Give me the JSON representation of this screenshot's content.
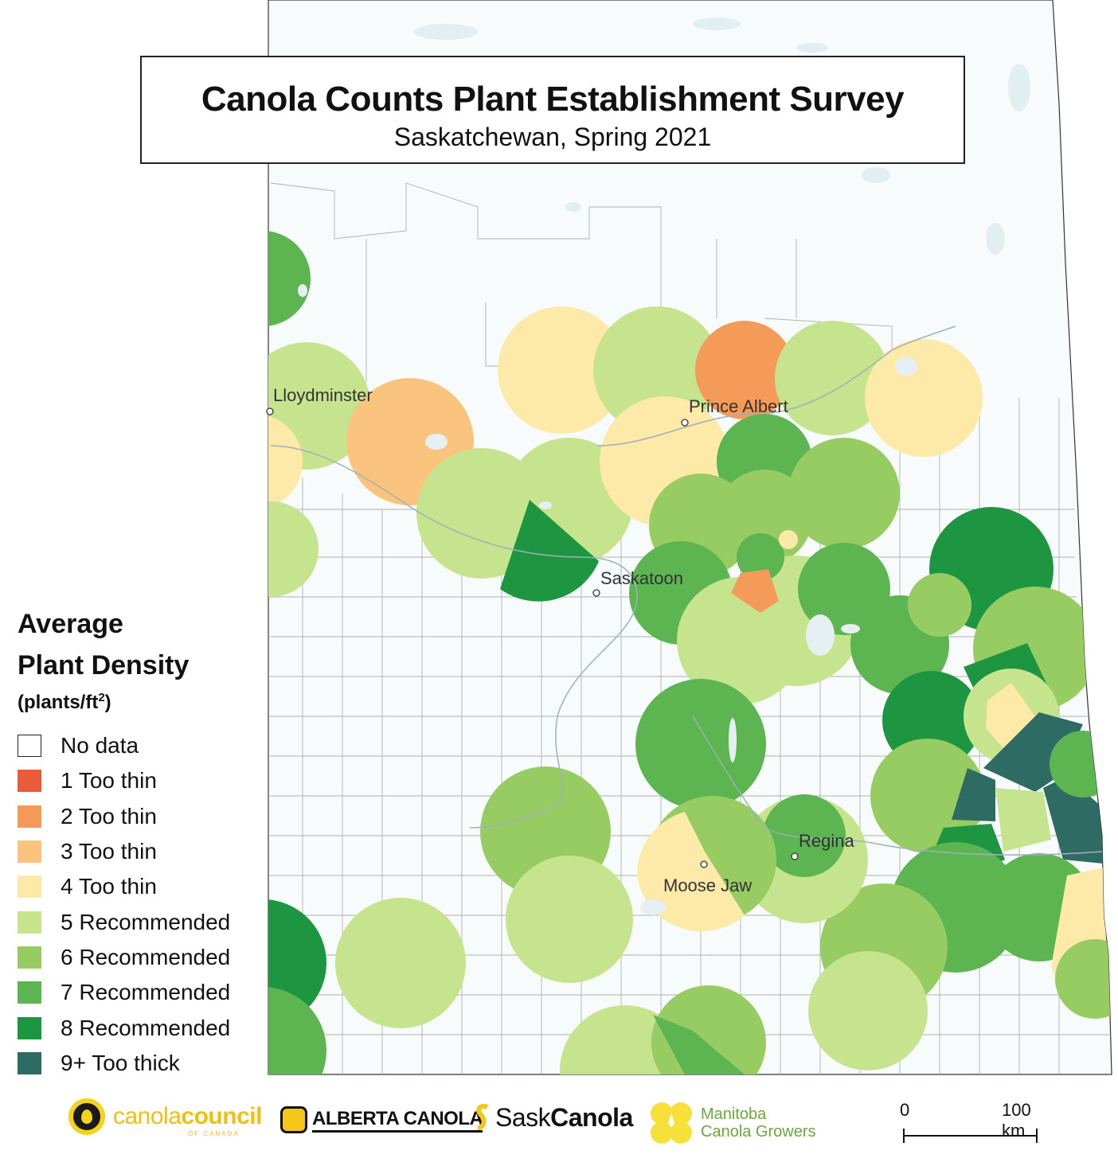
{
  "title": {
    "main": "Canola Counts Plant Establishment Survey",
    "subtitle": "Saskatchewan, Spring 2021"
  },
  "legend": {
    "title_line1": "Average",
    "title_line2": "Plant Density",
    "unit": "(plants/ft",
    "unit_sup": "2",
    "unit_close": ")",
    "items": [
      {
        "label": "No data",
        "color": "#ffffff"
      },
      {
        "label": "1 Too thin",
        "color": "#ea5b3a"
      },
      {
        "label": "2 Too thin",
        "color": "#f59b5a"
      },
      {
        "label": "3 Too thin",
        "color": "#fbc47e"
      },
      {
        "label": "4 Too thin",
        "color": "#fde9a8"
      },
      {
        "label": "5 Recommended",
        "color": "#c6e38d"
      },
      {
        "label": "6 Recommended",
        "color": "#97cc63"
      },
      {
        "label": "7 Recommended",
        "color": "#5cb551"
      },
      {
        "label": "8 Recommended",
        "color": "#1e9641"
      },
      {
        "label": "9+ Too thick",
        "color": "#2e6b63"
      }
    ]
  },
  "cities": [
    {
      "name": "Lloydminster"
    },
    {
      "name": "Prince Albert"
    },
    {
      "name": "Saskatoon"
    },
    {
      "name": "Regina"
    },
    {
      "name": "Moose Jaw"
    }
  ],
  "scale": {
    "start": "0",
    "end": "100 km"
  },
  "logos": {
    "canola_council": "canola",
    "canola_council_bold": "council",
    "canola_council_sub": "OF CANADA",
    "alberta": "ALBERTA CANOLA",
    "sask_light": "Sask",
    "sask_bold": "Canola",
    "manitoba_line1": "Manitoba",
    "manitoba_line2": "Canola Growers"
  }
}
